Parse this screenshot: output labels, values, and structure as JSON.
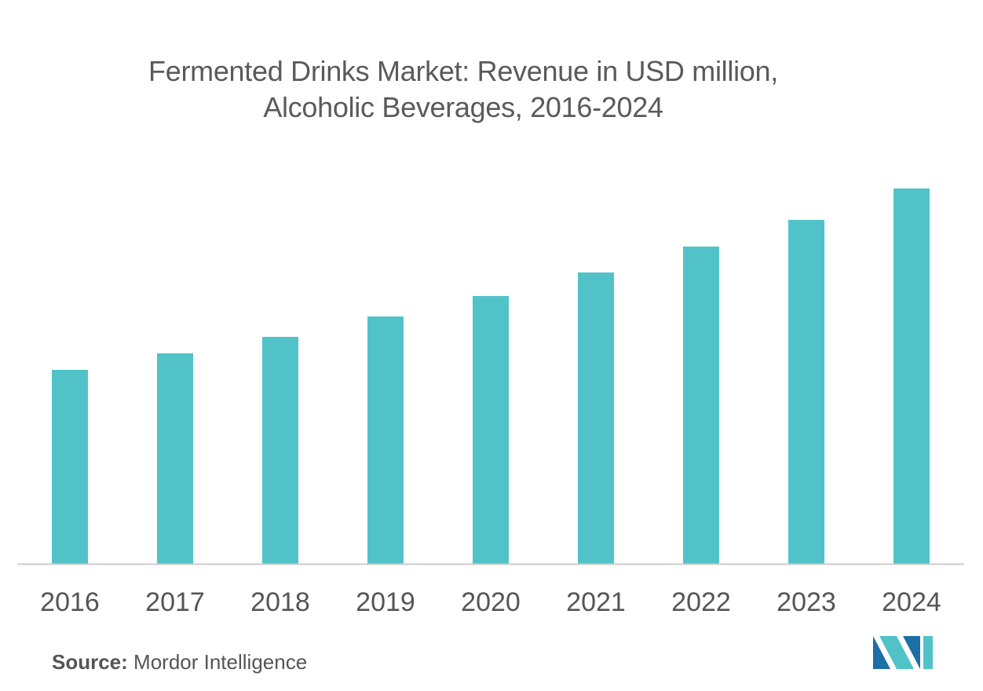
{
  "chart_data": {
    "type": "bar",
    "title_lines": [
      "Fermented Drinks Market: Revenue in USD million,",
      "Alcoholic Beverages, 2016-2024"
    ],
    "categories": [
      "2016",
      "2017",
      "2018",
      "2019",
      "2020",
      "2021",
      "2022",
      "2023",
      "2024"
    ],
    "values": [
      247,
      268,
      289,
      315,
      341,
      371,
      404,
      438,
      478
    ],
    "ylim": [
      0,
      500
    ],
    "xlabel": "",
    "ylabel": "",
    "grid": false,
    "legend": "none",
    "bar_color": "#51c3c8",
    "axis_color": "#cccccc"
  },
  "footer": {
    "source_label": "Source:",
    "source_text": "Mordor Intelligence"
  },
  "logo": {
    "icon": "mordor-intelligence-logo-icon",
    "colors": [
      "#1d6fa5",
      "#51c3c8"
    ]
  }
}
